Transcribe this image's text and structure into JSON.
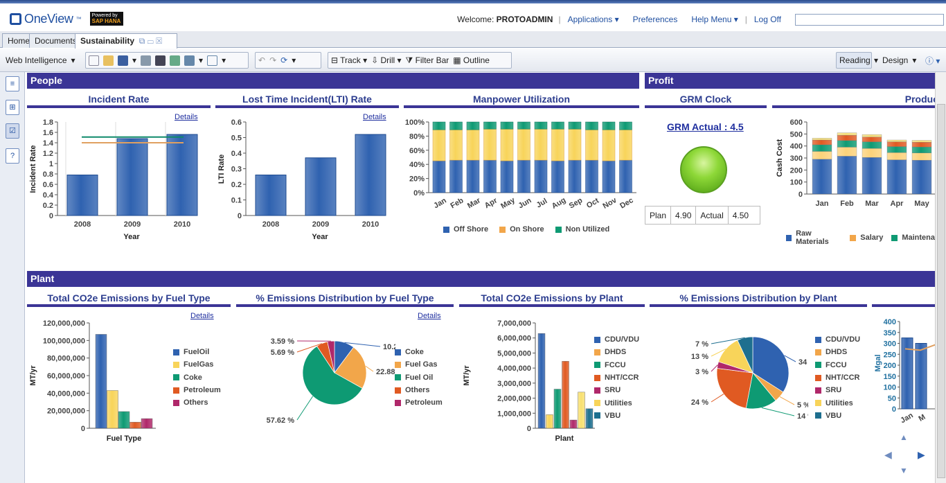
{
  "header": {
    "logo": "OneView",
    "logo_tm": "™",
    "powered_by": "Powered by",
    "sap_hana": "SAP HANA",
    "welcome": "Welcome:",
    "user": "PROTOADMIN",
    "applications": "Applications",
    "preferences": "Preferences",
    "help_menu": "Help Menu",
    "log_off": "Log Off"
  },
  "tabs": [
    "Home",
    "Documents",
    "Sustainability"
  ],
  "toolbar": {
    "web_intelligence": "Web Intelligence",
    "track": "Track",
    "drill": "Drill",
    "filter_bar": "Filter Bar",
    "outline": "Outline",
    "reading": "Reading",
    "design": "Design"
  },
  "sections": {
    "people": "People",
    "profit": "Profit",
    "plant": "Plant"
  },
  "colors": {
    "navy": "#3b3596",
    "blue": "#2f62b0",
    "orange": "#f2a64a",
    "green": "#0e9a73",
    "yellow": "#f8d45a",
    "red": "#e05a22",
    "magenta": "#b0286a",
    "teal": "#1e6f8f"
  },
  "incident": {
    "title": "Incident Rate",
    "details": "Details",
    "ylabel": "Incident Rate",
    "xlabel": "Year",
    "ticks": [
      "0",
      "0.2",
      "0.4",
      "0.6",
      "0.8",
      "1",
      "1.2",
      "1.4",
      "1.6",
      "1.8"
    ],
    "categories": [
      "2008",
      "2009",
      "2010"
    ],
    "values": [
      0.78,
      1.48,
      1.56
    ],
    "line_green": 1.51,
    "line_orange": 1.4
  },
  "lti": {
    "title": "Lost Time Incident(LTI) Rate",
    "details": "Details",
    "ylabel": "LTI Rate",
    "xlabel": "Year",
    "ticks": [
      "0",
      "0.1",
      "0.2",
      "0.3",
      "0.4",
      "0.5",
      "0.6"
    ],
    "categories": [
      "2008",
      "2009",
      "2010"
    ],
    "values": [
      0.26,
      0.37,
      0.52
    ]
  },
  "manpower": {
    "title": "Manpower Utilization",
    "ticks": [
      "0%",
      "20%",
      "40%",
      "60%",
      "80%",
      "100%"
    ],
    "months": [
      "Jan",
      "Feb",
      "Mar",
      "Apr",
      "May",
      "Jun",
      "Jul",
      "Aug",
      "Sep",
      "Oct",
      "Nov",
      "Dec"
    ],
    "offshore": [
      45,
      46,
      46,
      46,
      45,
      46,
      46,
      45,
      46,
      46,
      45,
      46
    ],
    "onshore": [
      44,
      43,
      43,
      44,
      45,
      44,
      44,
      45,
      44,
      43,
      44,
      43
    ],
    "legend": [
      "Off Shore",
      "On Shore",
      "Non Utilized"
    ]
  },
  "grm": {
    "title": "GRM Clock",
    "actual_label": "GRM Actual : 4.5",
    "plan_label": "Plan",
    "plan_value": "4.90",
    "actual_col": "Actual",
    "actual_value": "4.50"
  },
  "production": {
    "title": "Produc",
    "ylabel": "Cash Cost",
    "ticks": [
      "0",
      "100",
      "200",
      "300",
      "400",
      "500",
      "600"
    ],
    "months": [
      "Jan",
      "Feb",
      "Mar",
      "Apr",
      "May"
    ],
    "raw": [
      290,
      315,
      305,
      285,
      282
    ],
    "salary": [
      65,
      75,
      75,
      60,
      60
    ],
    "maintenance": [
      55,
      55,
      55,
      50,
      50
    ],
    "other1": [
      40,
      45,
      40,
      40,
      40
    ],
    "other2": [
      15,
      20,
      20,
      15,
      15
    ],
    "legend": [
      "Raw Materials",
      "Salary",
      "Maintena"
    ]
  },
  "co2_fuel": {
    "title": "Total CO2e Emissions by Fuel Type",
    "details": "Details",
    "ylabel": "MT/yr",
    "xlabel": "Fuel Type",
    "ticks": [
      "0",
      "20,000,000",
      "40,000,000",
      "60,000,000",
      "80,000,000",
      "100,000,000",
      "120,000,000"
    ],
    "values": [
      107000000,
      43000000,
      19000000,
      7000000,
      11000000
    ],
    "legend": [
      "FuelOil",
      "FuelGas",
      "Coke",
      "Petroleum",
      "Others"
    ]
  },
  "dist_fuel": {
    "title": "% Emissions Distribution by Fuel Type",
    "details": "Details",
    "labels": [
      "10.21 %",
      "22.88 %",
      "57.62 %",
      "5.69 %",
      "3.59 %"
    ],
    "values": [
      10.21,
      22.88,
      57.62,
      5.69,
      3.59
    ],
    "legend": [
      "Coke",
      "Fuel Gas",
      "Fuel Oil",
      "Others",
      "Petroleum"
    ]
  },
  "co2_plant": {
    "title": "Total CO2e Emissions by Plant",
    "ylabel": "MT/yr",
    "xlabel": "Plant",
    "ticks": [
      "0",
      "1,000,000",
      "2,000,000",
      "3,000,000",
      "4,000,000",
      "5,000,000",
      "6,000,000",
      "7,000,000"
    ],
    "values": [
      6300000,
      900000,
      2600000,
      4450000,
      550000,
      2400000,
      1300000
    ],
    "legend": [
      "CDU/VDU",
      "DHDS",
      "FCCU",
      "NHT/CCR",
      "SRU",
      "Utilities",
      "VBU"
    ]
  },
  "dist_plant": {
    "title": "% Emissions Distribution by Plant",
    "labels": [
      "34 %",
      "5 %",
      "14 %",
      "24 %",
      "3 %",
      "13 %",
      "7 %"
    ],
    "values": [
      34,
      5,
      14,
      24,
      3,
      13,
      7
    ],
    "legend": [
      "CDU/VDU",
      "DHDS",
      "FCCU",
      "NHT/CCR",
      "SRU",
      "Utilities",
      "VBU"
    ]
  },
  "water": {
    "ylabel": "Mgal",
    "ticks": [
      "0",
      "50",
      "100",
      "150",
      "200",
      "250",
      "300",
      "350",
      "400"
    ],
    "months": [
      "Jan",
      "M"
    ],
    "values": [
      325,
      300
    ],
    "line": 275
  }
}
